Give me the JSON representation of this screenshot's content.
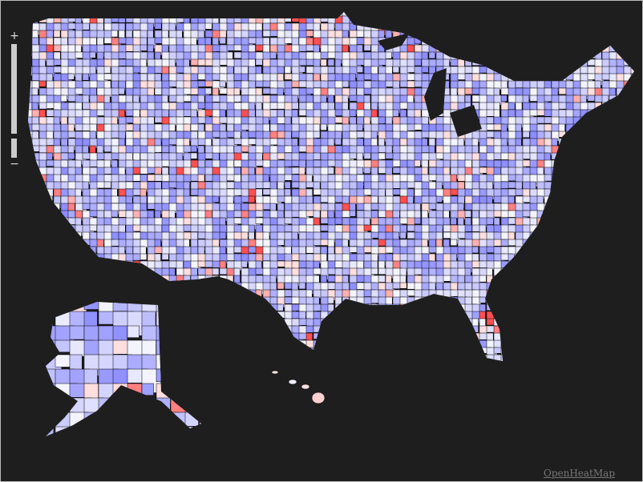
{
  "zoom": {
    "in": "+",
    "out": "−"
  },
  "attribution": "OpenHeatMap"
}
